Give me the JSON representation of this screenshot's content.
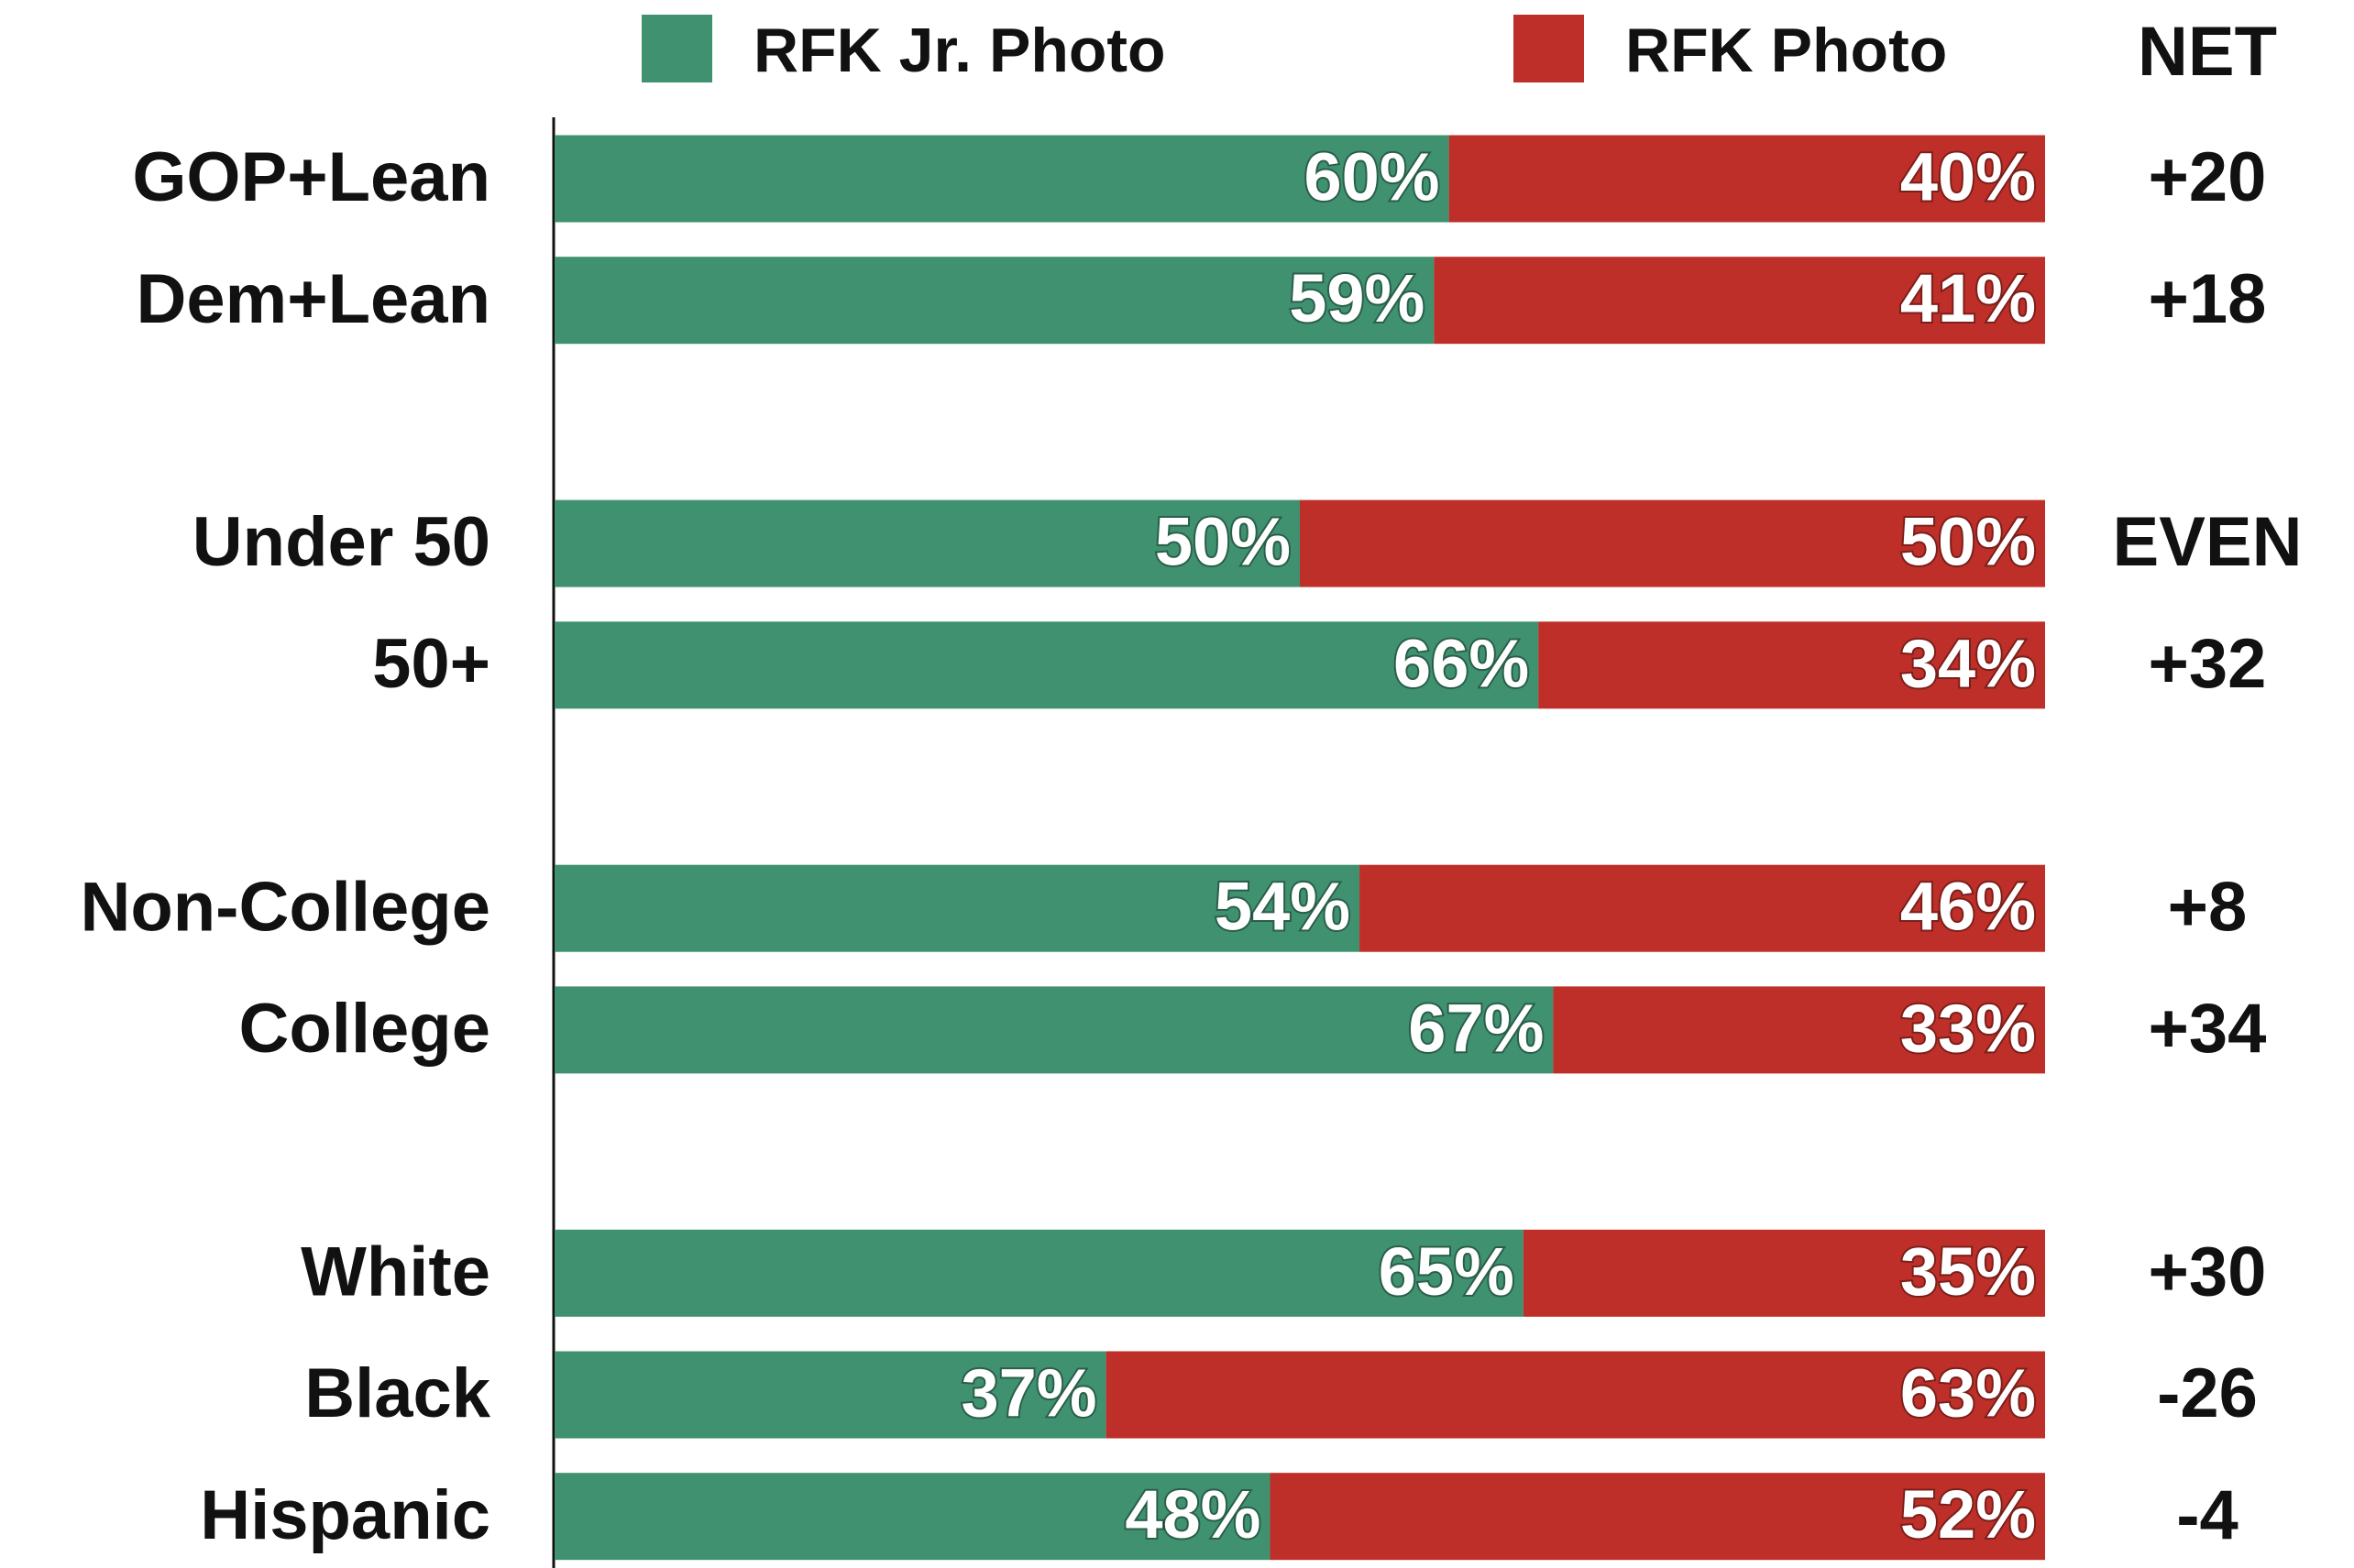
{
  "chart_data": {
    "type": "stacked_bar_horizontal",
    "categories": [
      "GOP+Lean",
      "Dem+Lean",
      "Under 50",
      "50+",
      "Non-College",
      "College",
      "White",
      "Black",
      "Hispanic"
    ],
    "series": [
      {
        "name": "RFK Jr. Photo",
        "color": "#3f9170",
        "values": [
          60,
          59,
          50,
          66,
          54,
          67,
          65,
          37,
          48
        ],
        "value_labels": [
          "60%",
          "59%",
          "50%",
          "66%",
          "54%",
          "67%",
          "65%",
          "37%",
          "48%"
        ]
      },
      {
        "name": "RFK Photo",
        "color": "#bd2f28",
        "values": [
          40,
          41,
          50,
          34,
          46,
          33,
          35,
          63,
          52
        ],
        "value_labels": [
          "40%",
          "41%",
          "50%",
          "34%",
          "46%",
          "33%",
          "35%",
          "63%",
          "52%"
        ]
      }
    ],
    "xlim": [
      0,
      100
    ],
    "net_label": "NET",
    "net": [
      "+20",
      "+18",
      "EVEN",
      "+32",
      "+8",
      "+34",
      "+30",
      "-26",
      "-4"
    ]
  }
}
